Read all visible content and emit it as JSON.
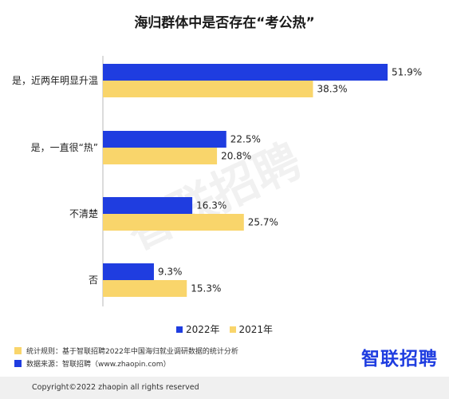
{
  "chart_data": {
    "type": "bar",
    "orientation": "horizontal",
    "title": "海归群体中是否存在“考公热”",
    "categories": [
      "是，近两年明显升温",
      "是，一直很“热”",
      "不清楚",
      "否"
    ],
    "series": [
      {
        "name": "2022年",
        "color": "#1f3de0",
        "values": [
          51.9,
          22.5,
          16.3,
          9.3
        ],
        "labels": [
          "51.9%",
          "22.5%",
          "16.3%",
          "9.3%"
        ]
      },
      {
        "name": "2021年",
        "color": "#f9d56b",
        "values": [
          38.3,
          20.8,
          25.7,
          15.3
        ],
        "labels": [
          "38.3%",
          "20.8%",
          "25.7%",
          "15.3%"
        ]
      }
    ],
    "xlim": [
      0,
      51.9
    ],
    "grid": false,
    "legend_position": "bottom"
  },
  "legend": [
    "2022年",
    "2021年"
  ],
  "notes": [
    {
      "text": "统计规则：基于智联招聘2022年中国海归就业调研数据的统计分析",
      "color": "#f9d56b"
    },
    {
      "text": "数据来源：智联招聘（www.zhaopin.com）",
      "color": "#1f3de0"
    }
  ],
  "logo_text": "智联招聘",
  "copyright": "Copyright©2022 zhaopin all rights reserved",
  "watermark": "智联招聘"
}
